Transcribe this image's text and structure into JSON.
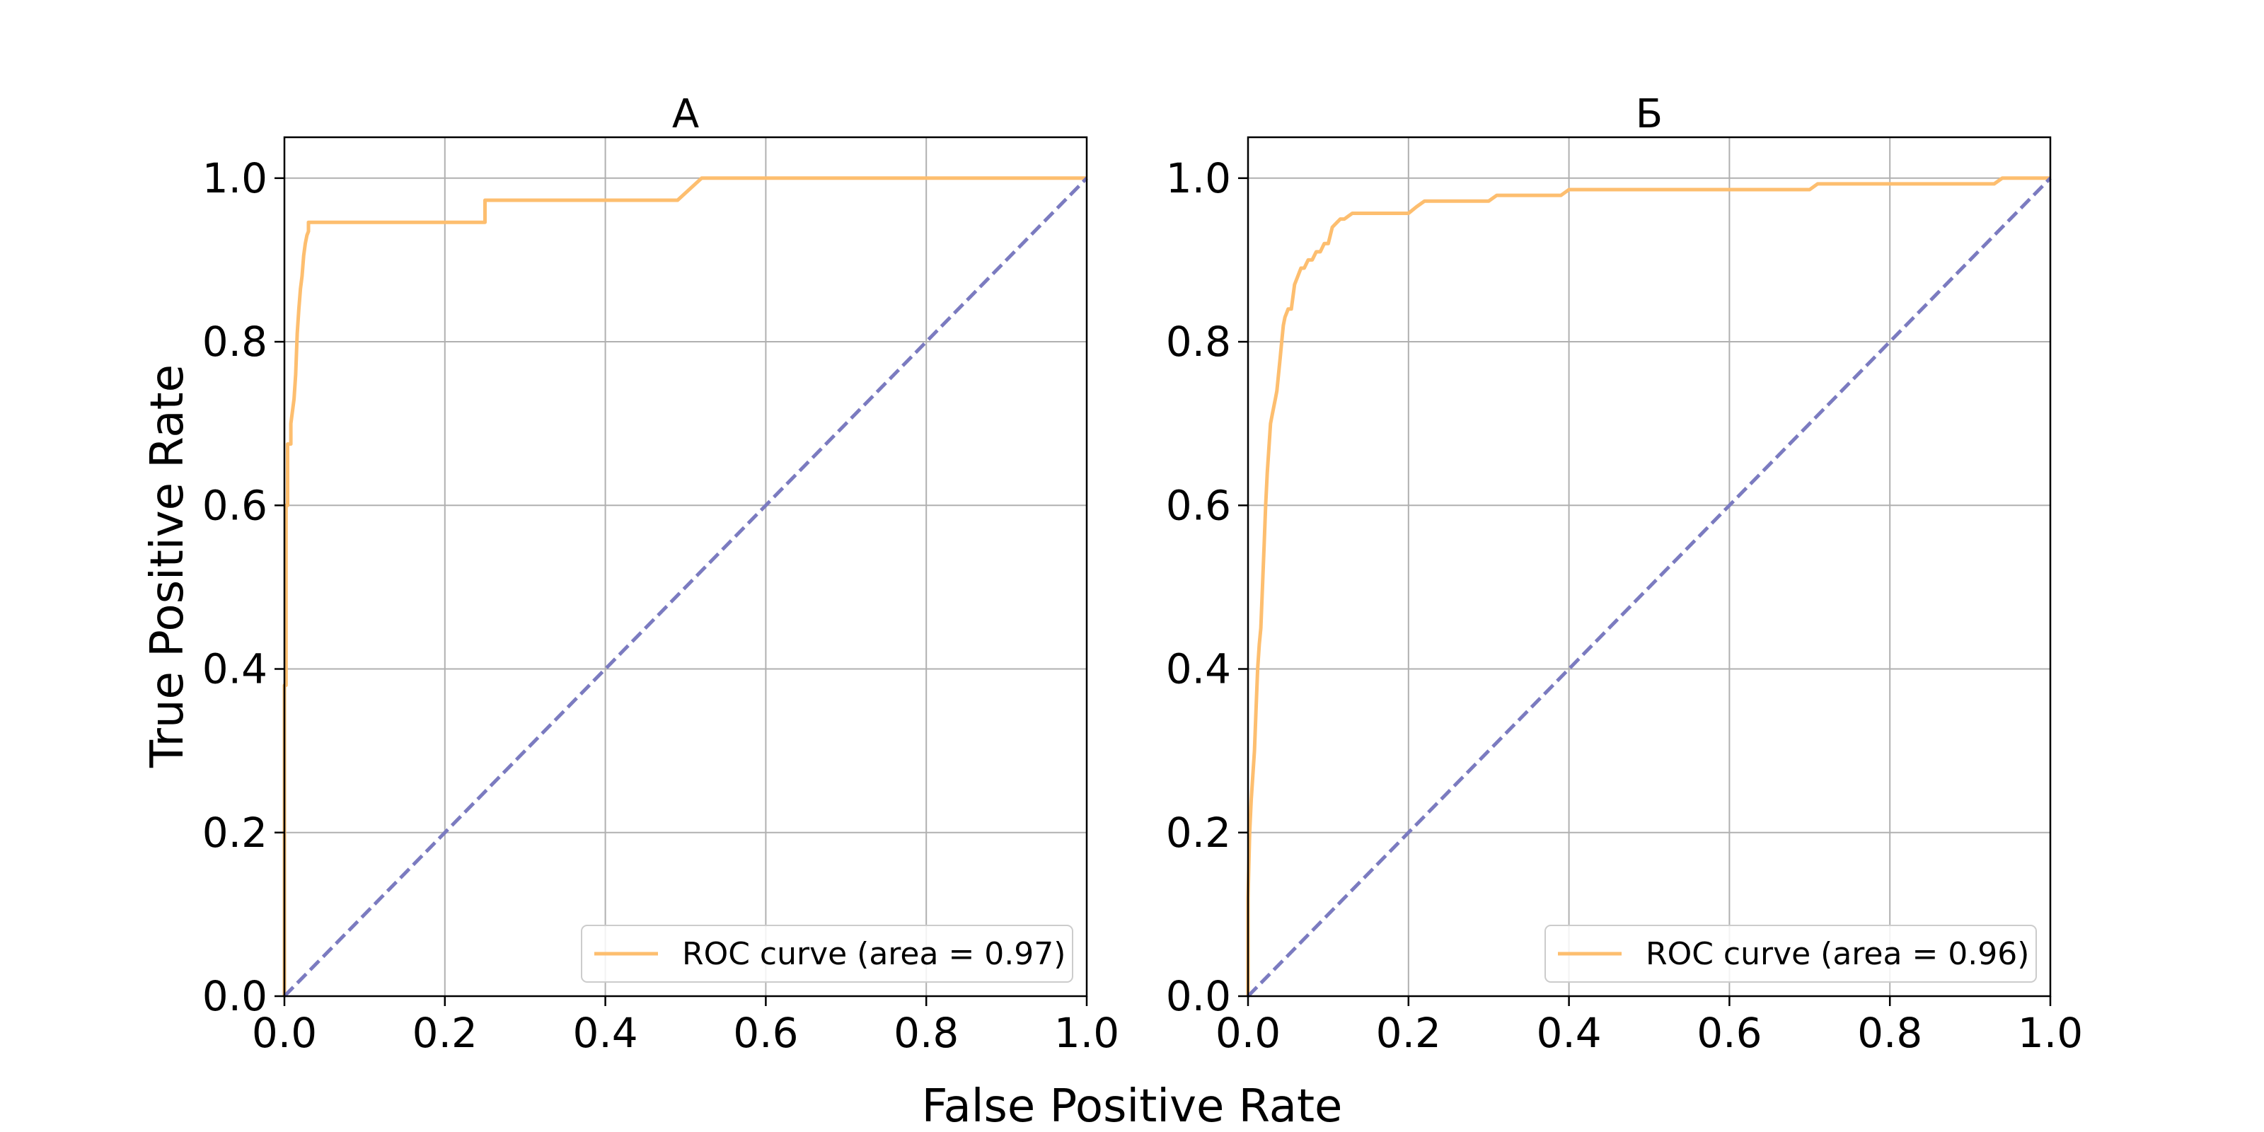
{
  "figure": {
    "xlabel": "False Positive Rate",
    "ylabel": "True Positive Rate"
  },
  "colors": {
    "roc": "#fdbe6f",
    "diagonal": "#7b7bc0",
    "grid": "#b0b0b0",
    "axes": "#000000"
  },
  "chart_data": [
    {
      "type": "line",
      "title": "А",
      "xlabel": "False Positive Rate",
      "ylabel": "True Positive Rate",
      "xlim": [
        0.0,
        1.0
      ],
      "ylim": [
        0.0,
        1.05
      ],
      "xticks": [
        "0.0",
        "0.2",
        "0.4",
        "0.6",
        "0.8",
        "1.0"
      ],
      "yticks": [
        "0.0",
        "0.2",
        "0.4",
        "0.6",
        "0.8",
        "1.0"
      ],
      "grid": true,
      "legend_position": "lower-right",
      "series": [
        {
          "name": "ROC curve (area = 0.97)",
          "color": "#fdbe6f",
          "x": [
            0.0,
            0.0,
            0.002,
            0.002,
            0.004,
            0.004,
            0.008,
            0.008,
            0.012,
            0.014,
            0.016,
            0.018,
            0.02,
            0.022,
            0.024,
            0.026,
            0.028,
            0.03,
            0.03,
            0.25,
            0.25,
            0.49,
            0.52,
            1.0
          ],
          "y": [
            0.0,
            0.38,
            0.38,
            0.6,
            0.6,
            0.675,
            0.675,
            0.7,
            0.73,
            0.76,
            0.81,
            0.84,
            0.865,
            0.88,
            0.905,
            0.92,
            0.93,
            0.935,
            0.946,
            0.946,
            0.973,
            0.973,
            1.0,
            1.0
          ]
        },
        {
          "name": "",
          "style": "dashed",
          "color": "#7b7bc0",
          "x": [
            0.0,
            1.0
          ],
          "y": [
            0.0,
            1.0
          ]
        }
      ]
    },
    {
      "type": "line",
      "title": "Б",
      "xlabel": "False Positive Rate",
      "ylabel": "True Positive Rate",
      "xlim": [
        0.0,
        1.0
      ],
      "ylim": [
        0.0,
        1.05
      ],
      "xticks": [
        "0.0",
        "0.2",
        "0.4",
        "0.6",
        "0.8",
        "1.0"
      ],
      "yticks": [
        "0.0",
        "0.2",
        "0.4",
        "0.6",
        "0.8",
        "1.0"
      ],
      "grid": true,
      "legend_position": "lower-right",
      "series": [
        {
          "name": "ROC curve (area = 0.96)",
          "color": "#fdbe6f",
          "x": [
            0.0,
            0.0,
            0.002,
            0.004,
            0.006,
            0.008,
            0.01,
            0.012,
            0.014,
            0.016,
            0.018,
            0.02,
            0.022,
            0.024,
            0.026,
            0.028,
            0.03,
            0.032,
            0.034,
            0.036,
            0.038,
            0.04,
            0.042,
            0.044,
            0.046,
            0.05,
            0.054,
            0.058,
            0.062,
            0.066,
            0.07,
            0.075,
            0.08,
            0.085,
            0.09,
            0.095,
            0.1,
            0.105,
            0.11,
            0.115,
            0.12,
            0.13,
            0.14,
            0.2,
            0.21,
            0.22,
            0.3,
            0.31,
            0.39,
            0.4,
            0.7,
            0.71,
            0.93,
            0.94,
            1.0
          ],
          "y": [
            0.0,
            0.12,
            0.2,
            0.24,
            0.27,
            0.3,
            0.35,
            0.4,
            0.43,
            0.45,
            0.5,
            0.55,
            0.6,
            0.64,
            0.67,
            0.7,
            0.71,
            0.72,
            0.73,
            0.74,
            0.76,
            0.78,
            0.8,
            0.82,
            0.83,
            0.84,
            0.84,
            0.87,
            0.88,
            0.89,
            0.89,
            0.9,
            0.9,
            0.91,
            0.91,
            0.92,
            0.92,
            0.94,
            0.945,
            0.95,
            0.95,
            0.957,
            0.957,
            0.957,
            0.965,
            0.972,
            0.972,
            0.979,
            0.979,
            0.986,
            0.986,
            0.993,
            0.993,
            1.0,
            1.0
          ]
        },
        {
          "name": "",
          "style": "dashed",
          "color": "#7b7bc0",
          "x": [
            0.0,
            1.0
          ],
          "y": [
            0.0,
            1.0
          ]
        }
      ]
    }
  ]
}
